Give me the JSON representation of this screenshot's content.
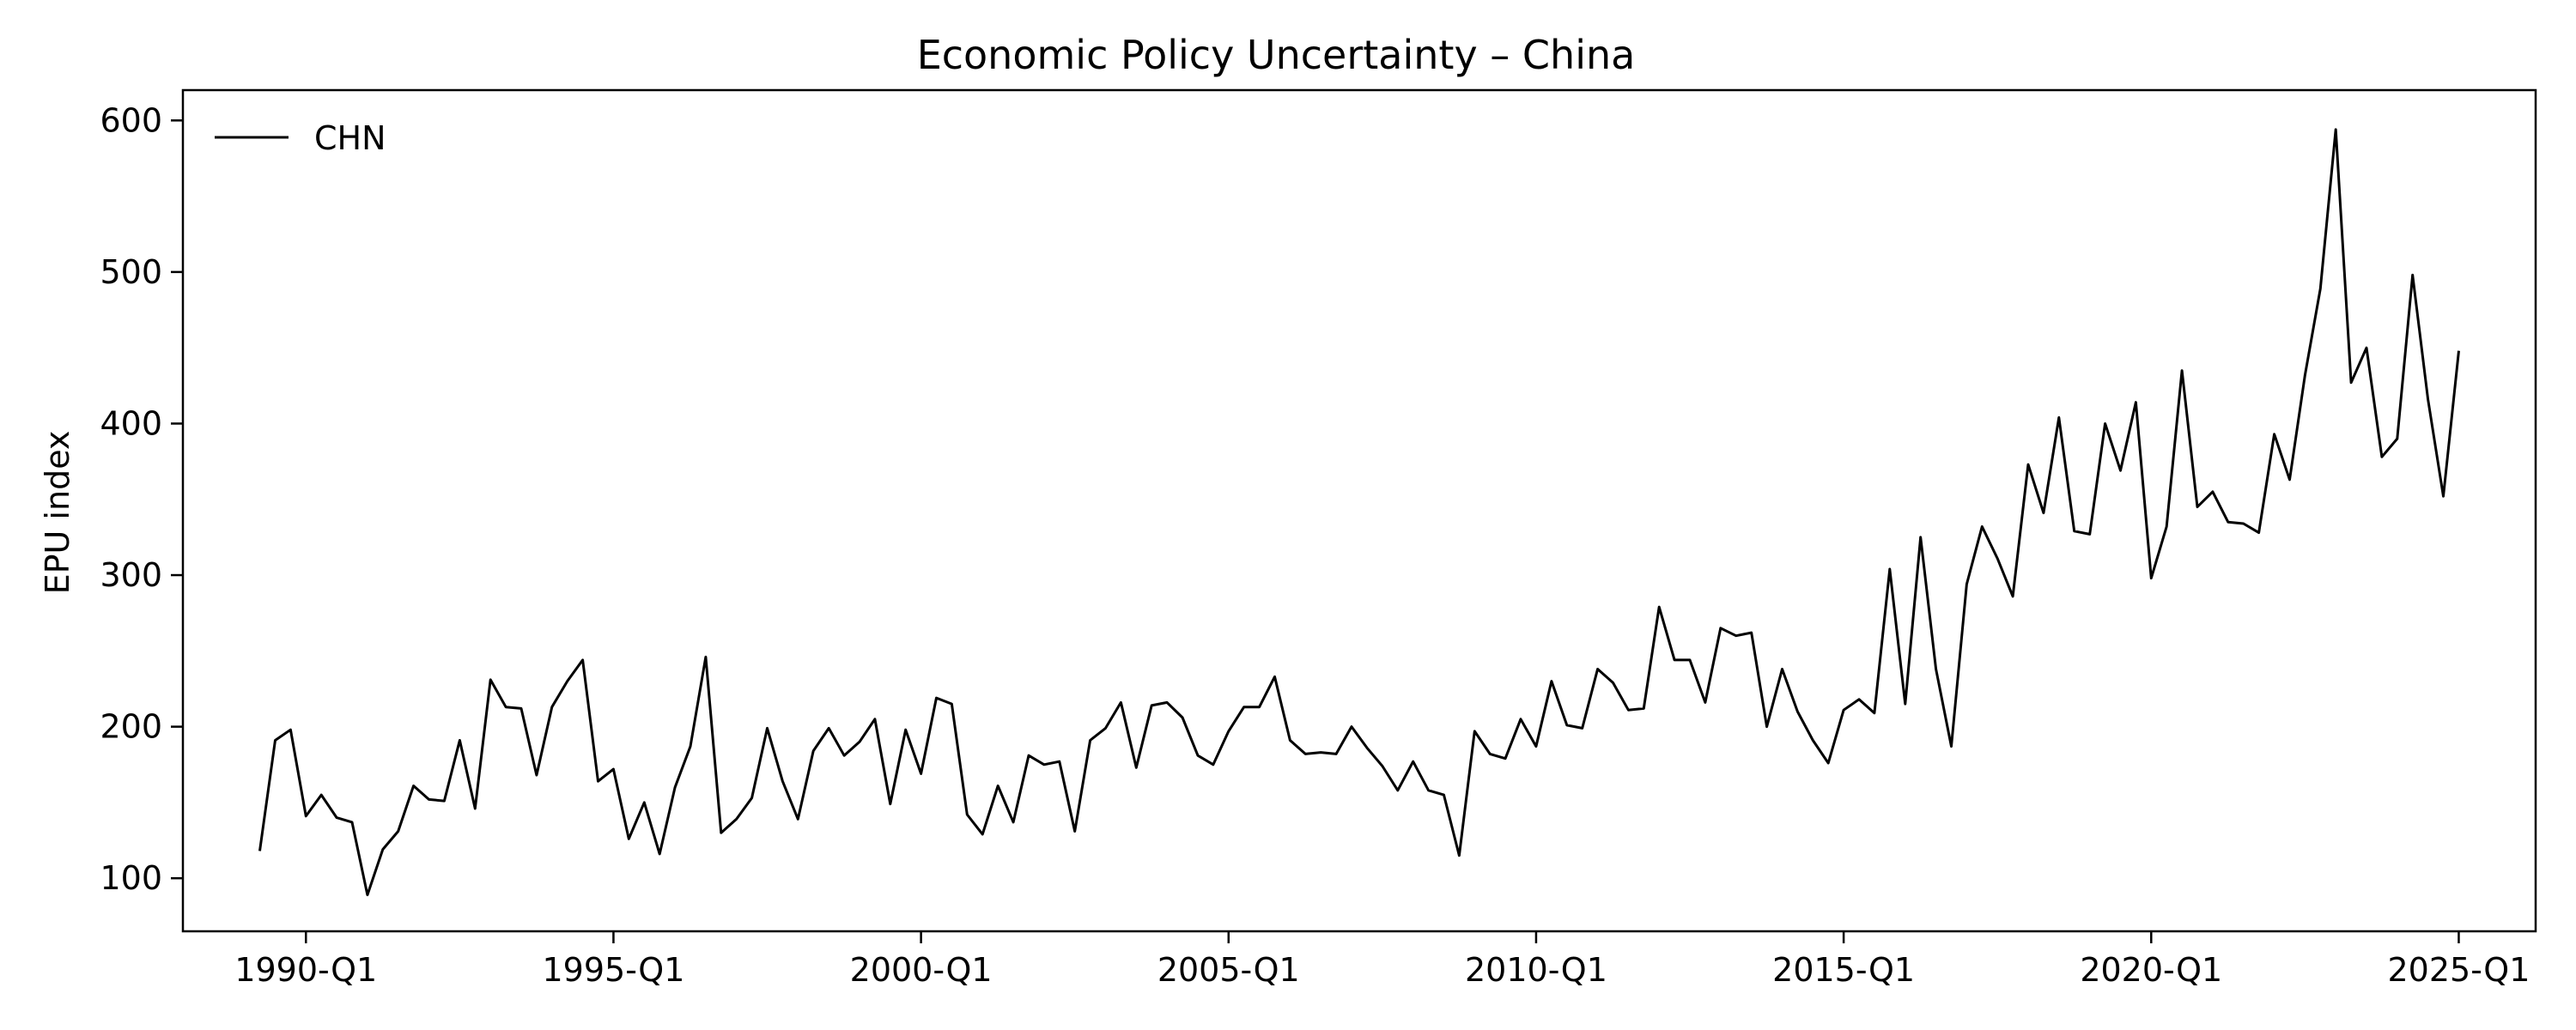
{
  "chart_data": {
    "type": "line",
    "title": "Economic Policy Uncertainty – China",
    "xlabel": "",
    "ylabel": "EPU index",
    "x_ticks": [
      "1990-Q1",
      "1995-Q1",
      "2000-Q1",
      "2005-Q1",
      "2010-Q1",
      "2015-Q1",
      "2020-Q1",
      "2025-Q1"
    ],
    "y_ticks": [
      100,
      200,
      300,
      400,
      500,
      600
    ],
    "xlim": [
      "1988-Q1",
      "2026-Q2"
    ],
    "ylim": [
      65,
      620
    ],
    "grid": false,
    "legend_position": "top-left",
    "series": [
      {
        "name": "CHN",
        "color": "#000000",
        "x": [
          "1989-Q2",
          "1989-Q3",
          "1989-Q4",
          "1990-Q1",
          "1990-Q2",
          "1990-Q3",
          "1990-Q4",
          "1991-Q1",
          "1991-Q2",
          "1991-Q3",
          "1991-Q4",
          "1992-Q1",
          "1992-Q2",
          "1992-Q3",
          "1992-Q4",
          "1993-Q1",
          "1993-Q2",
          "1993-Q3",
          "1993-Q4",
          "1994-Q1",
          "1994-Q2",
          "1994-Q3",
          "1994-Q4",
          "1995-Q1",
          "1995-Q2",
          "1995-Q3",
          "1995-Q4",
          "1996-Q1",
          "1996-Q2",
          "1996-Q3",
          "1996-Q4",
          "1997-Q1",
          "1997-Q2",
          "1997-Q3",
          "1997-Q4",
          "1998-Q1",
          "1998-Q2",
          "1998-Q3",
          "1998-Q4",
          "1999-Q1",
          "1999-Q2",
          "1999-Q3",
          "1999-Q4",
          "2000-Q1",
          "2000-Q2",
          "2000-Q3",
          "2000-Q4",
          "2001-Q1",
          "2001-Q2",
          "2001-Q3",
          "2001-Q4",
          "2002-Q1",
          "2002-Q2",
          "2002-Q3",
          "2002-Q4",
          "2003-Q1",
          "2003-Q2",
          "2003-Q3",
          "2003-Q4",
          "2004-Q1",
          "2004-Q2",
          "2004-Q3",
          "2004-Q4",
          "2005-Q1",
          "2005-Q2",
          "2005-Q3",
          "2005-Q4",
          "2006-Q1",
          "2006-Q2",
          "2006-Q3",
          "2006-Q4",
          "2007-Q1",
          "2007-Q2",
          "2007-Q3",
          "2007-Q4",
          "2008-Q1",
          "2008-Q2",
          "2008-Q3",
          "2008-Q4",
          "2009-Q1",
          "2009-Q2",
          "2009-Q3",
          "2009-Q4",
          "2010-Q1",
          "2010-Q2",
          "2010-Q3",
          "2010-Q4",
          "2011-Q1",
          "2011-Q2",
          "2011-Q3",
          "2011-Q4",
          "2012-Q1",
          "2012-Q2",
          "2012-Q3",
          "2012-Q4",
          "2013-Q1",
          "2013-Q2",
          "2013-Q3",
          "2013-Q4",
          "2014-Q1",
          "2014-Q2",
          "2014-Q3",
          "2014-Q4",
          "2015-Q1",
          "2015-Q2",
          "2015-Q3",
          "2015-Q4",
          "2016-Q1",
          "2016-Q2",
          "2016-Q3",
          "2016-Q4",
          "2017-Q1",
          "2017-Q2",
          "2017-Q3",
          "2017-Q4",
          "2018-Q1",
          "2018-Q2",
          "2018-Q3",
          "2018-Q4",
          "2019-Q1",
          "2019-Q2",
          "2019-Q3",
          "2019-Q4",
          "2020-Q1",
          "2020-Q2",
          "2020-Q3",
          "2020-Q4",
          "2021-Q1",
          "2021-Q2",
          "2021-Q3",
          "2021-Q4",
          "2022-Q1",
          "2022-Q2",
          "2022-Q3",
          "2022-Q4",
          "2023-Q1",
          "2023-Q2",
          "2023-Q3",
          "2023-Q4",
          "2024-Q1",
          "2024-Q2",
          "2024-Q3",
          "2024-Q4",
          "2025-Q1"
        ],
        "values": [
          118,
          191,
          198,
          141,
          155,
          140,
          137,
          89,
          119,
          131,
          161,
          152,
          151,
          191,
          146,
          231,
          213,
          212,
          168,
          213,
          230,
          244,
          164,
          172,
          126,
          150,
          116,
          160,
          187,
          246,
          130,
          139,
          153,
          199,
          164,
          139,
          184,
          199,
          181,
          190,
          205,
          149,
          198,
          169,
          219,
          215,
          142,
          129,
          161,
          137,
          181,
          175,
          177,
          131,
          191,
          199,
          216,
          173,
          214,
          216,
          206,
          181,
          175,
          197,
          213,
          213,
          233,
          191,
          182,
          183,
          182,
          200,
          186,
          174,
          158,
          177,
          158,
          155,
          115,
          197,
          182,
          179,
          205,
          187,
          230,
          201,
          199,
          238,
          229,
          211,
          212,
          279,
          244,
          244,
          216,
          265,
          260,
          262,
          200,
          238,
          210,
          191,
          176,
          211,
          218,
          209,
          304,
          215,
          325,
          238,
          187,
          294,
          332,
          311,
          286,
          373,
          341,
          404,
          329,
          327,
          400,
          369,
          414,
          298,
          332,
          435,
          345,
          355,
          335,
          334,
          328,
          393,
          363,
          432,
          489,
          594,
          427,
          450,
          378,
          390,
          498,
          416,
          352,
          448
        ]
      }
    ]
  }
}
